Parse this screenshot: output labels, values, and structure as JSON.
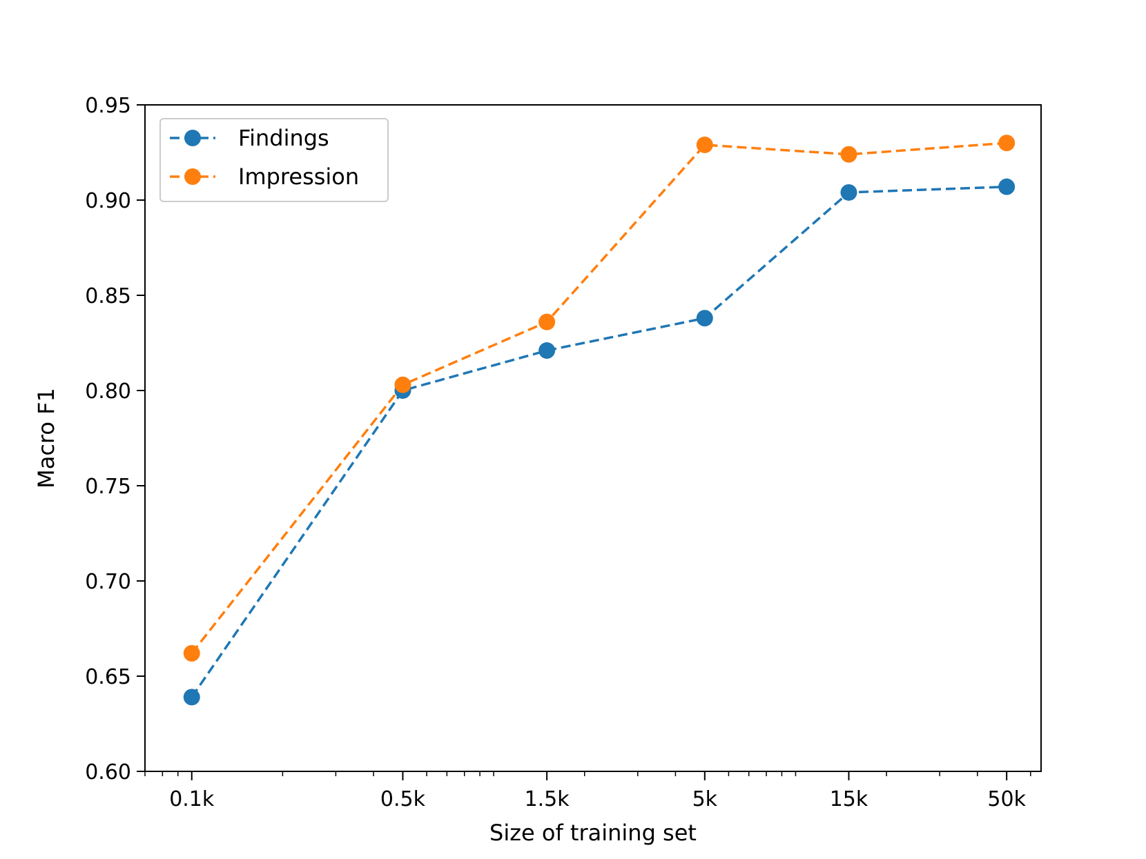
{
  "chart_data": {
    "type": "line",
    "title": "",
    "xlabel": "Size of training set",
    "ylabel": "Macro F1",
    "xscale": "log",
    "x": [
      100,
      500,
      1500,
      5000,
      15000,
      50000
    ],
    "xtick_labels": [
      "0.1k",
      "0.5k",
      "1.5k",
      "5k",
      "15k",
      "50k"
    ],
    "xlim": [
      70,
      65000
    ],
    "ylim": [
      0.6,
      0.95
    ],
    "yticks": [
      "0.60",
      "0.65",
      "0.70",
      "0.75",
      "0.80",
      "0.85",
      "0.90",
      "0.95"
    ],
    "grid": false,
    "legend_position": "upper-left",
    "series": [
      {
        "name": "Findings",
        "color": "#1f77b4",
        "linestyle": "dashed",
        "marker": "circle",
        "values": [
          0.639,
          0.8,
          0.821,
          0.838,
          0.904,
          0.907
        ]
      },
      {
        "name": "Impression",
        "color": "#ff7f0e",
        "linestyle": "dashed",
        "marker": "circle",
        "values": [
          0.662,
          0.803,
          0.836,
          0.929,
          0.924,
          0.93
        ]
      }
    ]
  }
}
